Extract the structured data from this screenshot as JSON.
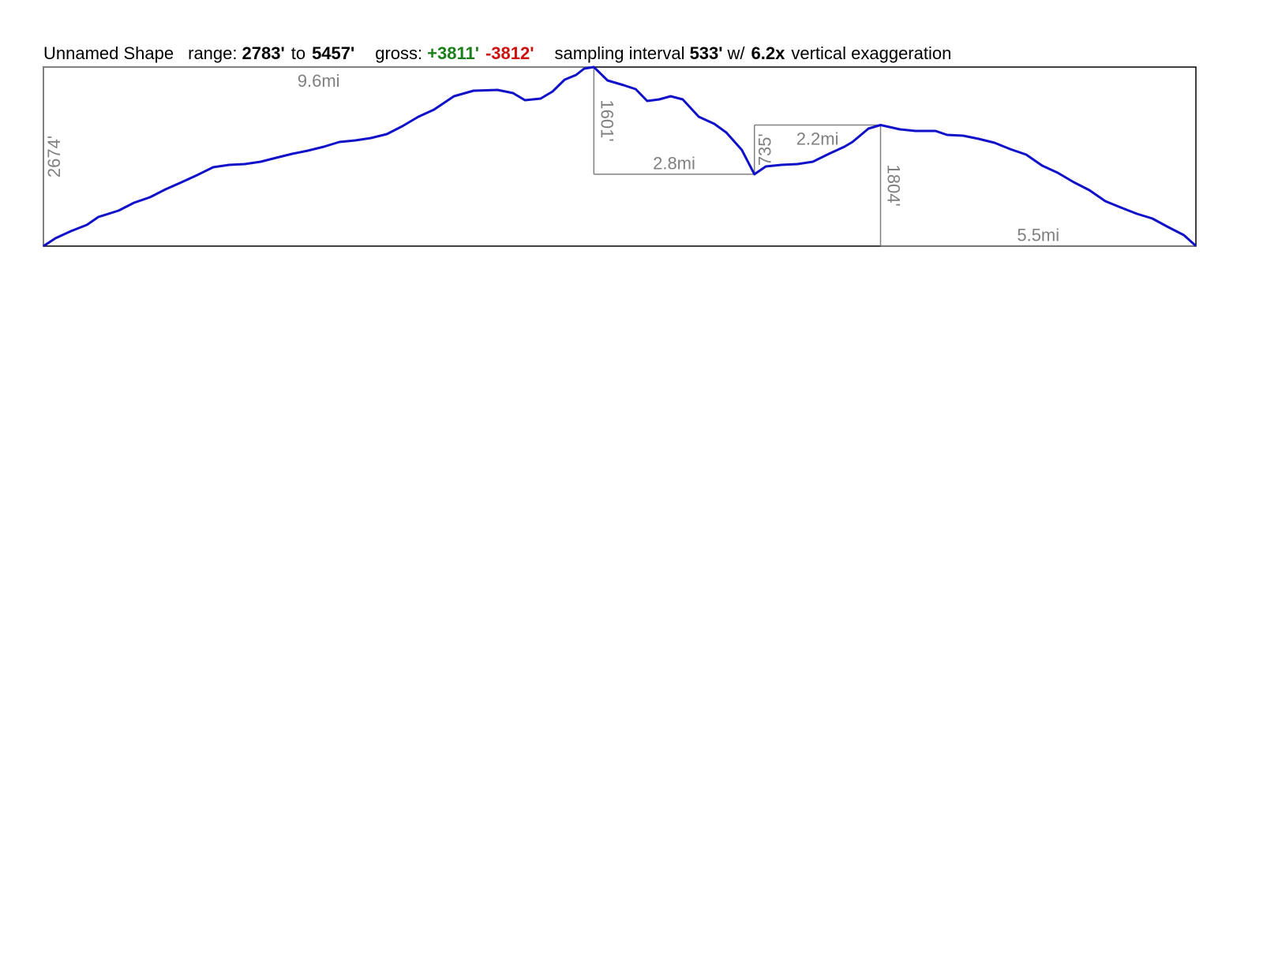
{
  "chart_data": {
    "type": "line",
    "header": [
      {
        "text": "Unnamed Shape",
        "bold": false,
        "color": "#000000"
      },
      {
        "text": "range:",
        "bold": false,
        "color": "#000000"
      },
      {
        "text": "2783'",
        "bold": true,
        "color": "#000000"
      },
      {
        "text": "to",
        "bold": false,
        "color": "#000000"
      },
      {
        "text": "5457'",
        "bold": true,
        "color": "#000000"
      },
      {
        "text": "gross:",
        "bold": false,
        "color": "#000000"
      },
      {
        "text": "+3811'",
        "bold": true,
        "color": "#1a7f1a"
      },
      {
        "text": "-3812'",
        "bold": true,
        "color": "#cc1111"
      },
      {
        "text": "sampling interval",
        "bold": false,
        "color": "#000000"
      },
      {
        "text": "533'",
        "bold": true,
        "color": "#000000"
      },
      {
        "text": "w/",
        "bold": false,
        "color": "#000000"
      },
      {
        "text": "6.2x",
        "bold": true,
        "color": "#000000"
      },
      {
        "text": "vertical exaggeration",
        "bold": false,
        "color": "#000000"
      }
    ],
    "color": "#1010c8",
    "leg_color": "#808080",
    "xlim": [
      0,
      20.1
    ],
    "ylim": [
      2783,
      5457
    ],
    "x": [
      0,
      0.21,
      0.48,
      0.76,
      0.96,
      1.31,
      1.58,
      1.86,
      2.13,
      2.41,
      2.68,
      2.96,
      3.24,
      3.51,
      3.79,
      4.06,
      4.34,
      4.61,
      4.89,
      5.16,
      5.44,
      5.71,
      5.99,
      6.26,
      6.54,
      6.81,
      7.16,
      7.5,
      7.92,
      8.19,
      8.4,
      8.67,
      8.88,
      9.09,
      9.29,
      9.43,
      9.6,
      9.84,
      10.12,
      10.33,
      10.53,
      10.74,
      10.94,
      11.15,
      11.43,
      11.7,
      11.91,
      12.18,
      12.4,
      12.6,
      12.87,
      13.15,
      13.42,
      13.7,
      13.97,
      14.11,
      14.39,
      14.6,
      14.94,
      15.21,
      15.56,
      15.76,
      16.04,
      16.31,
      16.59,
      16.86,
      17.14,
      17.42,
      17.69,
      17.97,
      18.24,
      18.52,
      18.79,
      19.07,
      19.34,
      19.62,
      19.89,
      20.1
    ],
    "y": [
      2783,
      2901,
      3007,
      3101,
      3219,
      3313,
      3431,
      3513,
      3631,
      3737,
      3843,
      3961,
      3996,
      4008,
      4043,
      4102,
      4161,
      4208,
      4267,
      4338,
      4361,
      4397,
      4456,
      4573,
      4715,
      4821,
      5021,
      5104,
      5115,
      5068,
      4962,
      4986,
      5092,
      5269,
      5339,
      5433,
      5457,
      5257,
      5186,
      5127,
      4950,
      4974,
      5021,
      4974,
      4715,
      4609,
      4479,
      4220,
      3856,
      3973,
      3996,
      4008,
      4043,
      4161,
      4267,
      4338,
      4538,
      4591,
      4526,
      4503,
      4503,
      4444,
      4432,
      4385,
      4326,
      4232,
      4149,
      3984,
      3878,
      3737,
      3619,
      3454,
      3360,
      3266,
      3195,
      3066,
      2948,
      2787
    ],
    "legs": [
      {
        "direction": "up",
        "climb": 2674,
        "climb_label": "2674'",
        "distance": 9.6,
        "distance_label": "9.6mi"
      },
      {
        "direction": "down",
        "climb": 1601,
        "climb_label": "1601'",
        "distance": 2.8,
        "distance_label": "2.8mi"
      },
      {
        "direction": "up",
        "climb": 735,
        "climb_label": "735'",
        "distance": 2.2,
        "distance_label": "2.2mi"
      },
      {
        "direction": "down",
        "climb": 1804,
        "climb_label": "1804'",
        "distance": 5.5,
        "distance_label": "5.5mi"
      }
    ]
  }
}
